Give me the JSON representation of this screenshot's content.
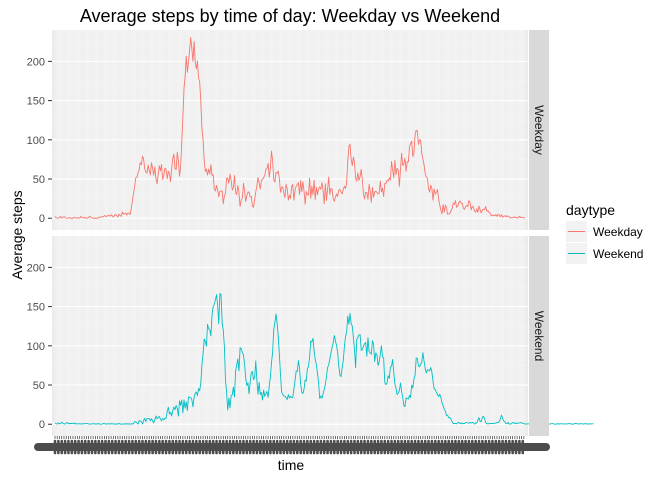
{
  "chart_data": {
    "type": "line",
    "title": "Average steps by time of day: Weekday vs Weekend",
    "xlabel": "time",
    "ylabel": "Average steps",
    "ylim": [
      -15,
      240
    ],
    "y_ticks": [
      0,
      50,
      100,
      150,
      200
    ],
    "facets": [
      "Weekday",
      "Weekend"
    ],
    "grid": true,
    "x_tick_labels_legible": false,
    "legend": {
      "title": "daytype",
      "placement": "right",
      "entries": [
        {
          "label": "Weekday",
          "color": "#F8766D"
        },
        {
          "label": "Weekend",
          "color": "#00BFC4"
        }
      ]
    },
    "series": [
      {
        "name": "Weekday",
        "color": "#F8766D",
        "values": [
          2.3,
          0.5,
          0.2,
          0.2,
          0.4,
          2.6,
          0.3,
          0.9,
          2.0,
          1.2,
          0.2,
          0.1,
          0.1,
          0.9,
          0.0,
          0.0,
          0.0,
          1.1,
          0.5,
          0.0,
          0.7,
          0.3,
          0.2,
          2.3,
          0.9,
          0.5,
          1.4,
          0.0,
          0.4,
          0.2,
          1.1,
          2.5,
          1.1,
          0.6,
          0.1,
          0.0,
          0.0,
          0.0,
          0.3,
          0.4,
          1.8,
          1.3,
          2.0,
          1.6,
          3.4,
          2.8,
          2.2,
          3.5,
          3.3,
          2.8,
          4.5,
          3.1,
          1.4,
          3.8,
          5.0,
          3.2,
          1.7,
          5.1,
          3.4,
          2.6,
          8.0,
          5.2,
          5.8,
          6.8,
          4.0,
          6.6,
          6.4,
          5.0,
          12.7,
          22.4,
          31.6,
          40.4,
          51.6,
          52.1,
          58.0,
          61.6,
          71.0,
          68.3,
          79.1,
          75.6,
          63.0,
          59.1,
          57.6,
          67.6,
          61.1,
          55.1,
          70.7,
          63.9,
          54.9,
          65.4,
          50.6,
          44.2,
          56.0,
          66.8,
          60.3,
          68.6,
          49.4,
          55.1,
          63.8,
          62.4,
          50.2,
          59.9,
          57.1,
          46.6,
          62.8,
          76.8,
          81.7,
          63.1,
          62.1,
          84.2,
          73.2,
          53.5,
          65.5,
          95.9,
          129.3,
          165.3,
          180.9,
          206.5,
          186.0,
          199.2,
          214.4,
          230.4,
          216.8,
          200.0,
          225.4,
          199.8,
          190.4,
          200.4,
          178.5,
          174.4,
          148.5,
          113.8,
          100.1,
          74.0,
          59.6,
          62.6,
          54.9,
          62.7,
          56.5,
          68.3,
          54.5,
          55.6,
          37.2,
          34.7,
          41.9,
          36.1,
          27.5,
          34.3,
          34.5,
          34.9,
          18.4,
          28.6,
          31.2,
          51.1,
          51.2,
          44.5,
          56.1,
          48.8,
          35.8,
          39.0,
          54.5,
          33.0,
          30.1,
          41.8,
          32.4,
          15.0,
          23.0,
          25.6,
          44.5,
          35.1,
          21.4,
          28.5,
          33.0,
          33.5,
          27.1,
          27.7,
          15.4,
          13.9,
          24.0,
          33.5,
          41.5,
          51.8,
          45.1,
          37.3,
          48.5,
          49.4,
          51.9,
          54.4,
          62.5,
          63.2,
          70.0,
          52.3,
          63.9,
          85.5,
          73.9,
          49.2,
          45.9,
          58.4,
          57.3,
          60.2,
          50.7,
          33.0,
          39.4,
          40.0,
          32.0,
          26.5,
          43.0,
          37.7,
          23.2,
          29.3,
          25.2,
          40.5,
          43.0,
          23.1,
          35.6,
          41.1,
          43.1,
          45.6,
          30.2,
          48.0,
          33.7,
          46.3,
          34.6,
          17.8,
          34.0,
          30.1,
          29.6,
          51.2,
          25.3,
          40.9,
          29.8,
          48.4,
          23.9,
          39.7,
          30.0,
          37.4,
          39.8,
          36.9,
          45.5,
          35.3,
          18.4,
          44.0,
          22.6,
          36.4,
          52.5,
          30.6,
          37.9,
          37.3,
          25.4,
          21.5,
          27.1,
          30.8,
          27.7,
          36.0,
          36.7,
          33.6,
          31.1,
          36.7,
          41.0,
          37.8,
          44.9,
          72.2,
          91.2,
          94.4,
          75.5,
          67.0,
          77.8,
          71.1,
          50.9,
          47.4,
          58.0,
          48.3,
          53.4,
          62.4,
          48.2,
          30.5,
          24.6,
          33.3,
          32.6,
          24.2,
          43.2,
          34.0,
          20.4,
          39.6,
          26.9,
          33.6,
          34.3,
          33.2,
          31.1,
          31.7,
          47.4,
          33.8,
          38.2,
          27.8,
          44.2,
          44.2,
          48.3,
          47.2,
          51.3,
          48.7,
          72.2,
          62.4,
          51.6,
          73.7,
          55.5,
          63.5,
          61.5,
          40.8,
          62.2,
          82.9,
          67.4,
          68.8,
          76.4,
          59.9,
          72.2,
          71.8,
          91.0,
          95.3,
          98.3,
          78.7,
          83.5,
          106.5,
          112.2,
          111.5,
          94.1,
          100.0,
          99.8,
          82.3,
          75.3,
          68.2,
          56.9,
          52.5,
          51.1,
          38.0,
          33.3,
          42.1,
          37.8,
          23.0,
          37.4,
          30.5,
          33.1,
          36.6,
          24.2,
          17.1,
          10.5,
          5.8,
          17.5,
          7.5,
          16.7,
          13.4,
          5.1,
          5.6,
          5.8,
          9.1,
          12.3,
          19.3,
          17.7,
          22.5,
          14.0,
          14.9,
          19.9,
          22.0,
          19.3,
          19.0,
          13.1,
          11.2,
          14.8,
          16.4,
          14.7,
          22.4,
          20.2,
          10.7,
          15.2,
          14.2,
          9.1,
          7.7,
          12.1,
          7.5,
          15.5,
          10.8,
          6.9,
          10.7,
          11.2,
          11.0,
          14.9,
          8.8,
          9.7,
          7.0,
          6.4,
          3.1,
          3.8,
          3.8,
          3.3,
          4.6,
          2.3,
          5.2,
          3.8,
          1.9,
          4.7,
          1.1,
          2.4,
          3.3,
          1.8,
          3.3,
          2.0,
          1.6,
          0.2,
          0.8,
          0.7,
          1.8,
          0.7,
          1.5,
          0.3,
          0.4,
          2.6,
          0.9,
          1.5,
          0.5,
          0.6,
          0.7
        ]
      },
      {
        "name": "Weekend",
        "color": "#00BFC4",
        "values": [
          1.6,
          0.8,
          0.2,
          1.8,
          0.6,
          0.7,
          2.5,
          1.2,
          0.4,
          0.2,
          1.5,
          2.1,
          0.5,
          0.9,
          1.1,
          0.9,
          1.6,
          0.4,
          1.3,
          0.3,
          0.5,
          0.5,
          0.5,
          0.2,
          0.7,
          0.4,
          0.7,
          0.9,
          0.8,
          0.8,
          0.4,
          0.1,
          0.4,
          0.4,
          0.5,
          0.5,
          0.3,
          0.3,
          0.6,
          0.7,
          0.2,
          0.1,
          0.2,
          0.8,
          0.9,
          0.1,
          0.5,
          0.3,
          0.7,
          0.3,
          0.6,
          0.5,
          0.4,
          0.2,
          0.5,
          0.0,
          0.3,
          1.1,
          0.3,
          0.2,
          0.1,
          0.5,
          0.0,
          0.7,
          0.6,
          0.2,
          0.5,
          0.1,
          0.6,
          0.2,
          0.8,
          3.4,
          3.0,
          1.8,
          0.2,
          4.6,
          4.2,
          3.1,
          0.5,
          4.9,
          7.5,
          3.3,
          7.0,
          7.6,
          7.2,
          4.6,
          7.2,
          4.1,
          1.8,
          5.8,
          10.5,
          7.1,
          8.4,
          10.0,
          6.7,
          4.3,
          7.3,
          5.6,
          7.6,
          7.2,
          16.2,
          21.7,
          13.0,
          15.3,
          10.5,
          17.4,
          21.9,
          18.6,
          23.9,
          20.2,
          10.4,
          29.9,
          24.1,
          30.9,
          14.6,
          31.0,
          20.5,
          28.8,
          17.5,
          35.0,
          34.2,
          34.2,
          31.3,
          22.3,
          34.2,
          39.3,
          41.1,
          36.6,
          45.5,
          42.8,
          52.7,
          76.4,
          89.6,
          108.7,
          105.6,
          99.4,
          127.4,
          121.7,
          120.8,
          112.6,
          139.1,
          150.2,
          152.6,
          158.8,
          165.2,
          151.5,
          128.2,
          166.5,
          165.4,
          129.3,
          120.0,
          99.1,
          56.3,
          40.4,
          18.1,
          33.2,
          20.9,
          36.5,
          37.4,
          47.4,
          34.9,
          67.6,
          75.7,
          83.3,
          68.0,
          97.6,
          96.3,
          91.7,
          88.5,
          77.1,
          58.8,
          49.5,
          52.8,
          39.0,
          53.7,
          66.2,
          67.2,
          56.8,
          59.9,
          80.8,
          55.4,
          38.4,
          53.4,
          37.9,
          40.7,
          30.8,
          43.6,
          35.5,
          39.2,
          41.7,
          34.4,
          48.6,
          60.5,
          78.5,
          91.5,
          120.3,
          129.2,
          140.5,
          129.1,
          112.6,
          89.5,
          63.6,
          41.5,
          38.0,
          35.9,
          35.8,
          33.8,
          31.5,
          37.7,
          33.5,
          35.5,
          33.9,
          34.2,
          45.2,
          55.9,
          67.8,
          67.4,
          81.2,
          71.2,
          51.9,
          40.7,
          39.1,
          44.6,
          56.5,
          55.2,
          71.1,
          73.3,
          86.2,
          106.2,
          104.7,
          109.4,
          93.0,
          82.3,
          76.2,
          64.8,
          53.3,
          32.8,
          36.1,
          33.3,
          39.0,
          44.4,
          50.8,
          60.6,
          72.2,
          75.6,
          83.0,
          90.5,
          98.3,
          103.6,
          113.1,
          106.3,
          100.1,
          91.6,
          74.5,
          62.4,
          60.8,
          72.1,
          81.5,
          99.3,
          111.8,
          117.4,
          137.9,
          127.7,
          141.2,
          128.2,
          125.1,
          110.3,
          95.1,
          72.2,
          108.1,
          110.8,
          113.9,
          114.2,
          94.1,
          95.1,
          99.8,
          102.6,
          104.2,
          86.8,
          110.2,
          92.8,
          91.0,
          89.2,
          106.5,
          102.3,
          79.8,
          90.9,
          88.4,
          75.1,
          79.5,
          89.3,
          100.1,
          85.6,
          84.6,
          53.1,
          50.5,
          52.4,
          61.9,
          58.3,
          72.5,
          73.9,
          82.6,
          65.7,
          51.7,
          46.0,
          37.9,
          39.7,
          42.9,
          52.7,
          41.9,
          34.0,
          23.9,
          22.6,
          33.7,
          33.0,
          32.1,
          36.8,
          33.9,
          50.0,
          46.2,
          57.9,
          62.1,
          84.6,
          83.8,
          74.2,
          73.3,
          76.3,
          79.6,
          91.2,
          80.6,
          71.5,
          65.3,
          69.4,
          68.9,
          68.1,
          72.3,
          66.3,
          54.8,
          45.0,
          44.4,
          40.8,
          37.9,
          35.2,
          38.2,
          34.2,
          27.3,
          23.8,
          19.2,
          16.9,
          11.3,
          11.5,
          8.3,
          8.5,
          6.3,
          3.3,
          0.9,
          1.0,
          0.8,
          0.6,
          1.9,
          2.1,
          0.8,
          1.9,
          0.5,
          1.2,
          0.8,
          1.9,
          2.2,
          1.6,
          1.3,
          2.3,
          1.4,
          2.3,
          1.8,
          0.2,
          1.8,
          1.4,
          5.4,
          8.3,
          3.5,
          3.4,
          8.9,
          10.2,
          7.0,
          2.1,
          0.8,
          0.4,
          0.8,
          0.9,
          0.8,
          1.0,
          0.8,
          1.4,
          1.3,
          2.2,
          2.2,
          2.9,
          6.5,
          11.6,
          8.1,
          4.3,
          3.4,
          0.9,
          0.7,
          2.4,
          0.2,
          0.4,
          0.5,
          2.1,
          2.1,
          0.7,
          1.5,
          0.9,
          1.5,
          1.7,
          2.1,
          1.8,
          1.1,
          0.8,
          0.2,
          0.3,
          0.4,
          0.6,
          0.1,
          0.1,
          0.0,
          0.6,
          0.1,
          0.6,
          0.5,
          0.6,
          0.8,
          0.4,
          0.4,
          0.6,
          0.5,
          0.3,
          0.5,
          0.6,
          0.5,
          0.2,
          0.2,
          0.6,
          0.9,
          0.9,
          0.1,
          0.1,
          0.3,
          0.8,
          0.1,
          0.7,
          0.5,
          0.6,
          0.4,
          0.4,
          0.6,
          0.3,
          0.6,
          0.8,
          0.6,
          0.8,
          0.0,
          0.1,
          0.8,
          0.8,
          0.9,
          0.6,
          0.0,
          0.9,
          0.6,
          0.5,
          0.2,
          0.8,
          0.3,
          0.8,
          0.1,
          0.4,
          0.7,
          0.2,
          0.5,
          0.7
        ]
      }
    ]
  }
}
